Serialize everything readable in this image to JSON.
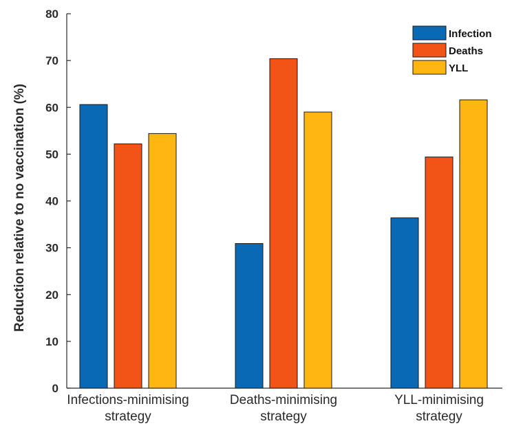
{
  "chart_data": {
    "type": "bar",
    "title": "",
    "xlabel": "",
    "ylabel": "Reduction relative to no vaccination (%)",
    "ylim": [
      0,
      80
    ],
    "yticks": [
      0,
      10,
      20,
      30,
      40,
      50,
      60,
      70,
      80
    ],
    "grid": false,
    "legend_position": "top-right",
    "categories": [
      [
        "Infections-minimising",
        "strategy"
      ],
      [
        "Deaths-minimising",
        "strategy"
      ],
      [
        "YLL-minimising",
        "strategy"
      ]
    ],
    "series": [
      {
        "name": "Infection",
        "color": "#0a69b5",
        "values": [
          60.6,
          30.9,
          36.4
        ]
      },
      {
        "name": "Deaths",
        "color": "#f25418",
        "values": [
          52.2,
          70.4,
          49.4
        ]
      },
      {
        "name": "YLL",
        "color": "#ffb512",
        "values": [
          54.4,
          59.0,
          61.6
        ]
      }
    ]
  }
}
